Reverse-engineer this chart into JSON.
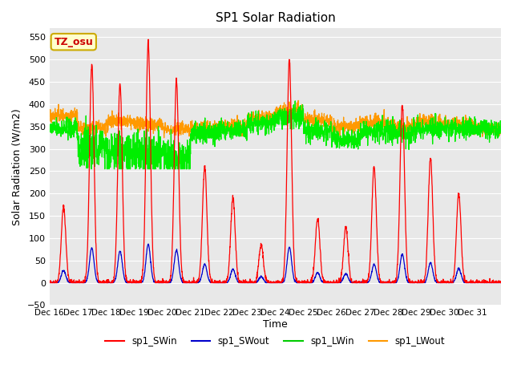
{
  "title": "SP1 Solar Radiation",
  "xlabel": "Time",
  "ylabel": "Solar Radiation (W/m2)",
  "ylim": [
    -50,
    570
  ],
  "bg_color": "#e8e8e8",
  "fig_color": "#ffffff",
  "annotation_text": "TZ_osu",
  "annotation_bg": "#ffffcc",
  "annotation_edge": "#ccaa00",
  "annotation_text_color": "#cc0000",
  "legend_entries": [
    "sp1_SWin",
    "sp1_SWout",
    "sp1_LWin",
    "sp1_LWout"
  ],
  "legend_colors": [
    "#ff0000",
    "#0000cc",
    "#00cc00",
    "#ff9900"
  ],
  "line_colors": {
    "SWin": "#ff0000",
    "SWout": "#0000cc",
    "LWin": "#00ee00",
    "LWout": "#ff9900"
  },
  "x_tick_labels": [
    "Dec 16",
    "Dec 17",
    "Dec 18",
    "Dec 19",
    "Dec 20",
    "Dec 21",
    "Dec 22",
    "Dec 23",
    "Dec 24",
    "Dec 25",
    "Dec 26",
    "Dec 27",
    "Dec 28",
    "Dec 29",
    "Dec 30",
    "Dec 31"
  ],
  "SWin_peaks": [
    170,
    490,
    445,
    540,
    455,
    260,
    190,
    85,
    500,
    145,
    125,
    260,
    400,
    280,
    200,
    0
  ],
  "LWin_bases": [
    345,
    305,
    290,
    290,
    280,
    335,
    345,
    360,
    370,
    340,
    320,
    340,
    335,
    345,
    345,
    345
  ],
  "LWout_bases": [
    375,
    345,
    360,
    355,
    345,
    345,
    350,
    370,
    385,
    365,
    350,
    360,
    350,
    360,
    355,
    345
  ]
}
